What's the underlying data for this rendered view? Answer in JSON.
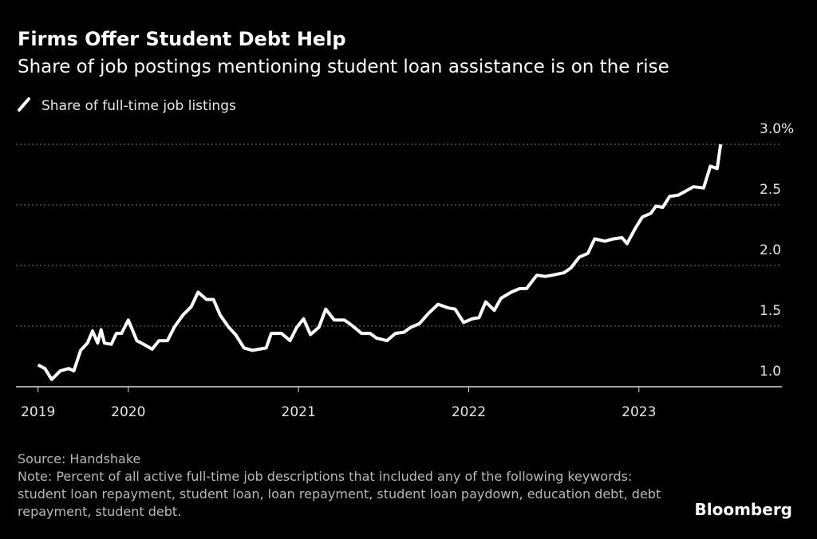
{
  "chart_data": {
    "type": "line",
    "title": "Firms Offer Student Debt Help",
    "subtitle": "Share of job postings mentioning student loan assistance is on the rise",
    "source": "Source: Handshake",
    "note": "Note: Percent of all active full-time job descriptions that included any of the following keywords: student loan repayment, student loan, loan repayment, student loan paydown, education debt, debt repayment, student debt.",
    "brand": "Bloomberg",
    "x": [
      2019.47,
      2019.51,
      2019.55,
      2019.6,
      2019.65,
      2019.68,
      2019.72,
      2019.76,
      2019.79,
      2019.82,
      2019.84,
      2019.86,
      2019.9,
      2019.93,
      2019.96,
      2020.0,
      2020.05,
      2020.09,
      2020.14,
      2020.18,
      2020.23,
      2020.27,
      2020.32,
      2020.37,
      2020.41,
      2020.46,
      2020.5,
      2020.54,
      2020.59,
      2020.63,
      2020.68,
      2020.73,
      2020.77,
      2020.81,
      2020.84,
      2020.9,
      2020.95,
      2020.99,
      2021.03,
      2021.07,
      2021.12,
      2021.16,
      2021.21,
      2021.27,
      2021.31,
      2021.37,
      2021.42,
      2021.46,
      2021.52,
      2021.57,
      2021.62,
      2021.66,
      2021.71,
      2021.76,
      2021.82,
      2021.88,
      2021.92,
      2021.97,
      2022.02,
      2022.06,
      2022.1,
      2022.15,
      2022.19,
      2022.25,
      2022.3,
      2022.34,
      2022.4,
      2022.45,
      2022.49,
      2022.56,
      2022.6,
      2022.65,
      2022.7,
      2022.74,
      2022.8,
      2022.85,
      2022.9,
      2022.93,
      2022.98,
      2023.02,
      2023.07,
      2023.1,
      2023.14,
      2023.18,
      2023.23,
      2023.27,
      2023.32,
      2023.38,
      2023.42,
      2023.46,
      2023.48
    ],
    "series": [
      {
        "name": "Share of full-time job listings",
        "color": "#ffffff",
        "values": [
          1.18,
          1.15,
          1.06,
          1.13,
          1.15,
          1.13,
          1.3,
          1.36,
          1.46,
          1.36,
          1.47,
          1.36,
          1.35,
          1.44,
          1.44,
          1.55,
          1.38,
          1.35,
          1.31,
          1.38,
          1.38,
          1.49,
          1.59,
          1.66,
          1.78,
          1.72,
          1.72,
          1.59,
          1.49,
          1.43,
          1.32,
          1.3,
          1.31,
          1.32,
          1.44,
          1.44,
          1.38,
          1.49,
          1.56,
          1.43,
          1.49,
          1.64,
          1.55,
          1.55,
          1.51,
          1.44,
          1.44,
          1.4,
          1.38,
          1.44,
          1.45,
          1.49,
          1.52,
          1.6,
          1.68,
          1.65,
          1.64,
          1.53,
          1.56,
          1.57,
          1.7,
          1.63,
          1.73,
          1.78,
          1.81,
          1.81,
          1.92,
          1.91,
          1.92,
          1.94,
          1.98,
          2.07,
          2.1,
          2.22,
          2.2,
          2.22,
          2.23,
          2.18,
          2.31,
          2.4,
          2.43,
          2.49,
          2.48,
          2.57,
          2.58,
          2.61,
          2.65,
          2.64,
          2.82,
          2.8,
          3.0
        ]
      }
    ],
    "xlim": [
      2019.34,
      2023.84
    ],
    "xticks": [
      {
        "value": 2019.47,
        "label": "2019"
      },
      2020,
      2021,
      2022,
      2023
    ],
    "ylim": [
      1,
      3
    ],
    "yticks": [
      {
        "value": 1,
        "label": "1.0"
      },
      1.5,
      {
        "value": 2,
        "label": "2.0"
      },
      2.5,
      {
        "value": 3,
        "label": "3.0%"
      }
    ],
    "grid": true
  }
}
